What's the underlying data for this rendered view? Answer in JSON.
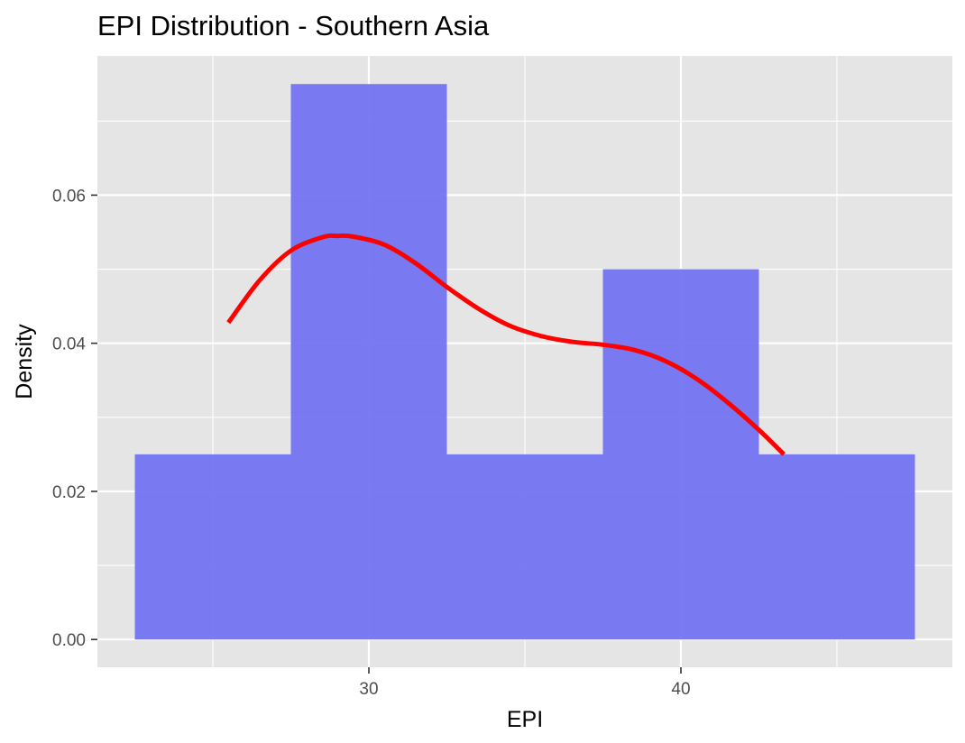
{
  "chart_data": {
    "type": "bar",
    "subtype": "histogram-with-density",
    "title": "EPI Distribution - Southern Asia",
    "xlabel": "EPI",
    "ylabel": "Density",
    "xlim": [
      21.3,
      48.7
    ],
    "ylim": [
      -0.00375,
      0.0788
    ],
    "x_ticks": [
      30,
      40
    ],
    "x_tick_labels": [
      "30",
      "40"
    ],
    "y_ticks": [
      0,
      0.02,
      0.04,
      0.06
    ],
    "y_tick_labels": [
      "0.00",
      "0.02",
      "0.04",
      "0.06"
    ],
    "grid": true,
    "legend": "none",
    "bins": [
      {
        "x0": 22.5,
        "x1": 27.5,
        "density": 0.025
      },
      {
        "x0": 27.5,
        "x1": 32.5,
        "density": 0.075
      },
      {
        "x0": 32.5,
        "x1": 37.5,
        "density": 0.025
      },
      {
        "x0": 37.5,
        "x1": 42.5,
        "density": 0.05
      },
      {
        "x0": 42.5,
        "x1": 47.5,
        "density": 0.025
      }
    ],
    "density_curve": {
      "x": [
        25.5,
        26.5,
        27.5,
        28.5,
        29.0,
        29.5,
        30.5,
        31.5,
        32.5,
        33.5,
        34.5,
        35.5,
        36.5,
        37.5,
        38.5,
        39.5,
        40.5,
        41.5,
        42.5,
        43.3
      ],
      "y": [
        0.0428,
        0.0485,
        0.0525,
        0.0543,
        0.0545,
        0.0544,
        0.0533,
        0.0508,
        0.0476,
        0.0447,
        0.0424,
        0.041,
        0.0402,
        0.0398,
        0.0391,
        0.0376,
        0.0352,
        0.032,
        0.0283,
        0.025
      ]
    },
    "colors": {
      "panel": "#e5e5e5",
      "grid": "#ffffff",
      "bar": "#7575f3",
      "curve": "#ff0000",
      "tick_label": "#4d4d4d",
      "tick_mark": "#333333"
    }
  }
}
